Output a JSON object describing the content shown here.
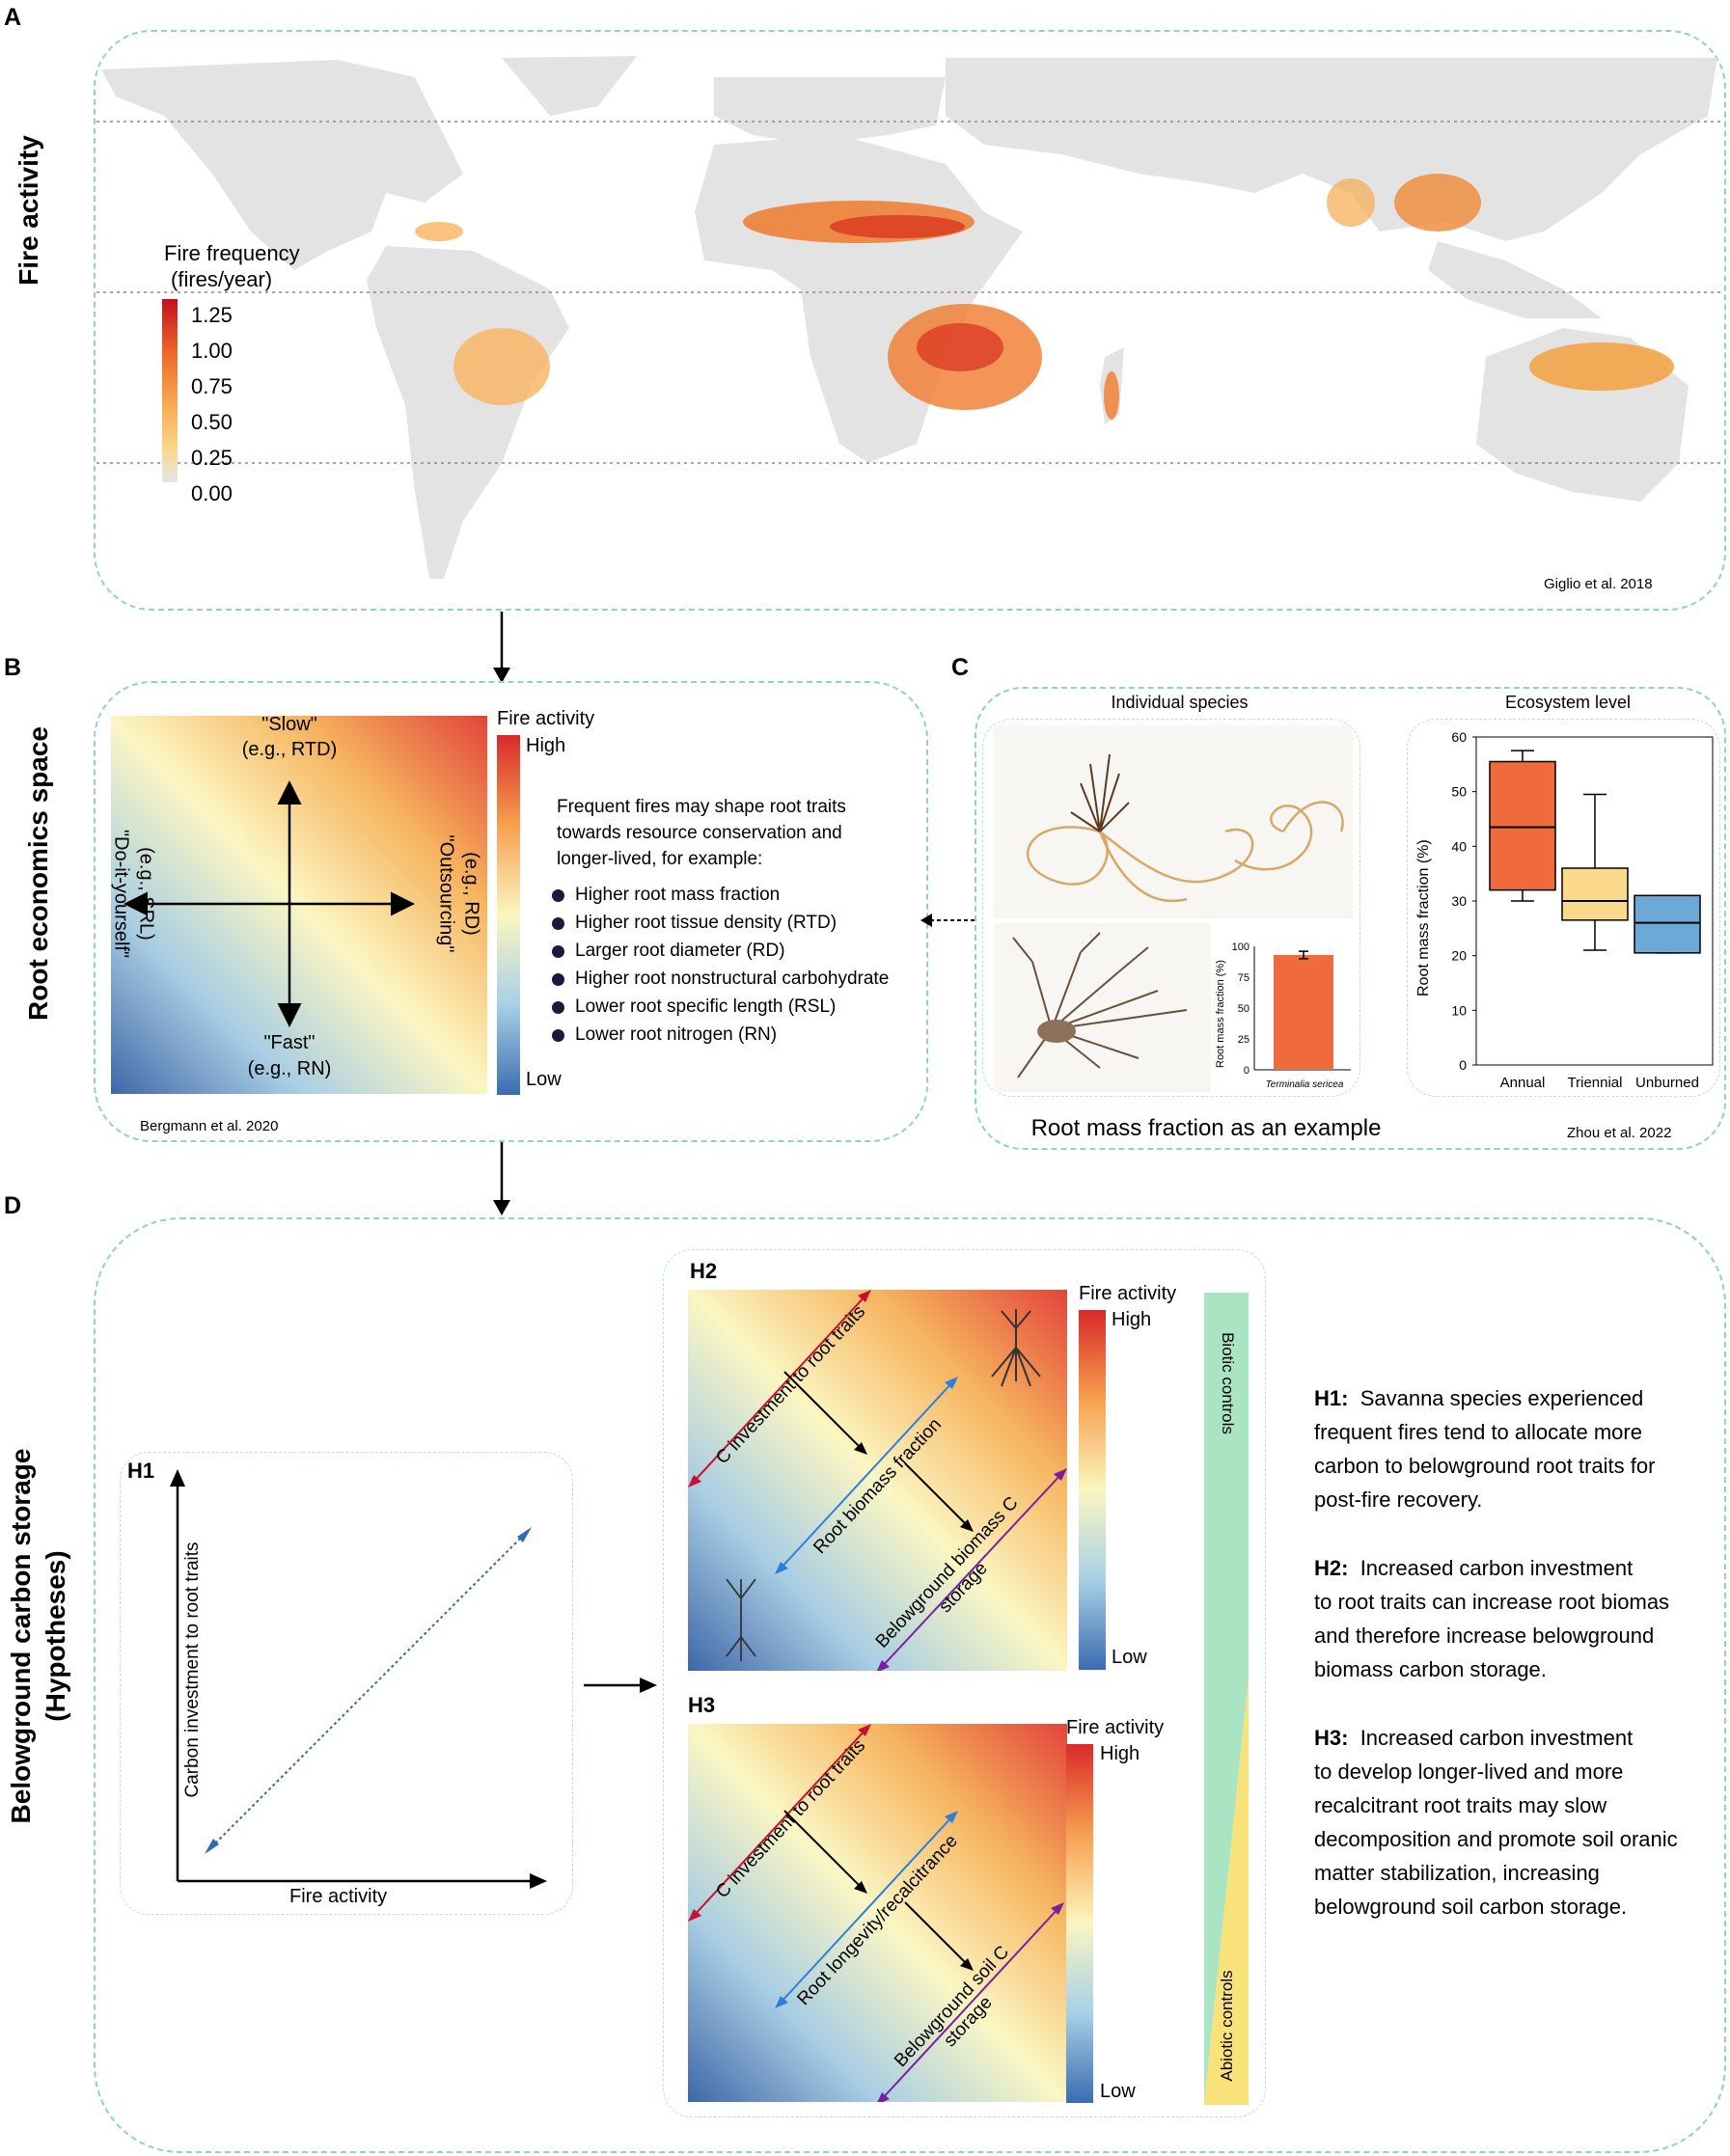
{
  "panel_a": {
    "letter": "A",
    "side_label": "Fire activity",
    "legend_title_1": "Fire frequency",
    "legend_title_2": "(fires/year)",
    "legend_ticks": [
      "1.25",
      "1.00",
      "0.75",
      "0.50",
      "0.25",
      "0.00"
    ],
    "citation": "Giglio et al. 2018"
  },
  "panel_b": {
    "letter": "B",
    "side_label": "Root economics space",
    "slow_label": "\"Slow\"",
    "slow_example": "(e.g., RTD)",
    "fast_label": "\"Fast\"",
    "fast_example": "(e.g., RN)",
    "diy_label": "\"Do-it-yourself\"",
    "diy_example": "(e.g., SRL)",
    "outsourcing_label": "\"Outsourcing\"",
    "outsourcing_example": "(e.g., RD)",
    "cbar_title": "Fire activity",
    "cbar_high": "High",
    "cbar_low": "Low",
    "intro_lines": [
      "Frequent fires may shape root traits",
      "towards resource conservation and",
      "longer-lived, for example:"
    ],
    "bullets": [
      "Higher root mass fraction",
      "Higher root tissue density (RTD)",
      "Larger root diameter (RD)",
      "Higher root nonstructural carbohydrate",
      "Lower root specific length (RSL)",
      "Lower root nitrogen (RN)"
    ],
    "citation": "Bergmann et al. 2020"
  },
  "panel_c": {
    "letter": "C",
    "individual_title": "Individual species",
    "ecosystem_title": "Ecosystem level",
    "caption": "Root mass fraction as an example",
    "citation": "Zhou et al. 2022",
    "species_name": "Terminalia sericea"
  },
  "panel_d": {
    "letter": "D",
    "side_label_1": "Belowground carbon storage",
    "side_label_2": "(Hypotheses)",
    "h1": {
      "label": "H1",
      "ylabel": "Carbon investment to root traits",
      "xlabel": "Fire activity"
    },
    "h2": {
      "label": "H2",
      "arrow1": "C investment to root traits",
      "arrow2": "Root biomass fraction",
      "arrow3_1": "Belowground biomass C",
      "arrow3_2": "storage",
      "cbar_title": "Fire activity",
      "cbar_high": "High",
      "cbar_low": "Low"
    },
    "h3": {
      "label": "H3",
      "arrow1": "C investment to root traits",
      "arrow2": "Root longevity/recalcitrance",
      "arrow3_1": "Belowground soil C",
      "arrow3_2": "storage",
      "cbar_title": "Fire activity",
      "cbar_high": "High",
      "cbar_low": "Low"
    },
    "biotic": "Biotic controls",
    "abiotic": "Abiotic controls",
    "hypotheses": [
      {
        "label": "H1:",
        "text_first": "Savanna species experienced",
        "text_rest": [
          "frequent fires tend to allocate more",
          "carbon to belowground root traits for",
          "post-fire recovery."
        ]
      },
      {
        "label": "H2:",
        "text_first": "Increased carbon investment",
        "text_rest": [
          "to root traits can increase root biomas",
          "and therefore increase belowground",
          "biomass carbon storage."
        ]
      },
      {
        "label": "H3:",
        "text_first": "Increased carbon investment",
        "text_rest": [
          "to develop longer-lived and more",
          "recalcitrant root traits may slow",
          "decomposition and promote soil oranic",
          "matter stabilization, increasing",
          "belowground soil carbon storage."
        ]
      }
    ]
  },
  "chart_data": [
    {
      "type": "bar",
      "title": "",
      "categories": [
        "Terminalia sericea"
      ],
      "values": [
        93
      ],
      "error": [
        3
      ],
      "ylabel": "Root mass fraction (%)",
      "yticks": [
        "0",
        "25",
        "50",
        "75",
        "100"
      ],
      "ylim": [
        0,
        100
      ]
    },
    {
      "type": "box",
      "title": "Ecosystem level",
      "categories": [
        "Annual",
        "Triennial",
        "Unburned"
      ],
      "ylabel": "Root mass fraction (%)",
      "yticks": [
        "0",
        "10",
        "20",
        "30",
        "40",
        "50",
        "60"
      ],
      "ylim": [
        0,
        60
      ],
      "boxes": [
        {
          "whisker_low": 30,
          "q1": 32,
          "median": 43.5,
          "q3": 55.5,
          "whisker_high": 57.5,
          "color": "#ef6a3c"
        },
        {
          "whisker_low": 21,
          "q1": 26.5,
          "median": 30,
          "q3": 36,
          "whisker_high": 49.5,
          "color": "#fbd98c"
        },
        {
          "whisker_low": 20.5,
          "q1": 20.5,
          "median": 26,
          "q3": 31,
          "whisker_high": 31,
          "color": "#6baad8"
        }
      ]
    }
  ]
}
